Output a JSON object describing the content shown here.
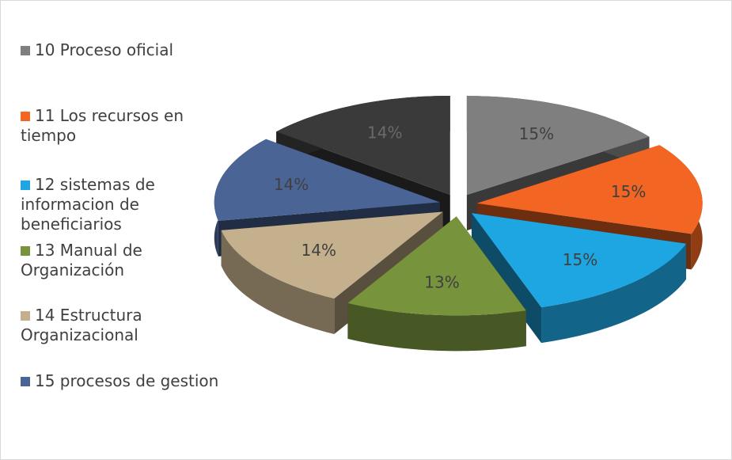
{
  "chart_data": {
    "type": "pie3d",
    "categories": [
      "10 Proceso oficial",
      "11 Los recursos en tiempo",
      "12 sistemas de informacion de beneficiarios",
      "13  Manual de Organización",
      "14  Estructura Organizacional",
      "15 procesos de gestion",
      null
    ],
    "values": [
      15,
      15,
      15,
      13,
      14,
      14,
      14
    ],
    "value_labels": [
      "15%",
      "15%",
      "15%",
      "13%",
      "14%",
      "14%",
      "14%"
    ],
    "colors": [
      "#7f7f7f",
      "#f26522",
      "#1ea6e2",
      "#77933c",
      "#c4b08c",
      "#4a6496",
      "#3a3a3a"
    ],
    "legend": "left"
  }
}
